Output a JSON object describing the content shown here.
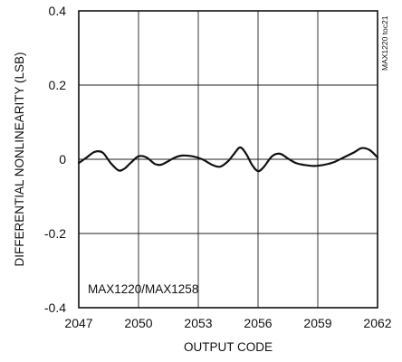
{
  "chart_data": {
    "type": "line",
    "title": "",
    "xlabel": "OUTPUT CODE",
    "ylabel": "DIFFERENTIAL NONLINEARITY (LSB)",
    "xlim": [
      2047,
      2062
    ],
    "ylim": [
      -0.4,
      0.4
    ],
    "x_ticks": [
      2047,
      2050,
      2053,
      2056,
      2059,
      2062
    ],
    "x_tick_labels": [
      "2047",
      "2050",
      "2053",
      "2056",
      "2059",
      "2062"
    ],
    "y_ticks": [
      -0.4,
      -0.2,
      0,
      0.2,
      0.4
    ],
    "y_tick_labels": [
      "-0.4",
      "-0.2",
      "0",
      "0.2",
      "0.4"
    ],
    "grid": true,
    "legend": "none",
    "annotations": [
      "MAX1220/MAX1258"
    ],
    "side_tag": "MAX1220 toc21",
    "line_color": "#111111",
    "series": [
      {
        "x": [
          2047.0,
          2047.4,
          2047.8,
          2048.2,
          2048.6,
          2049.0,
          2049.3,
          2049.6,
          2050.0,
          2050.4,
          2050.8,
          2051.1,
          2051.4,
          2051.8,
          2052.2,
          2052.7,
          2053.2,
          2053.7,
          2054.1,
          2054.5,
          2054.8,
          2055.1,
          2055.4,
          2055.7,
          2056.0,
          2056.3,
          2056.7,
          2057.1,
          2057.5,
          2057.9,
          2058.3,
          2058.8,
          2059.3,
          2059.8,
          2060.3,
          2060.8,
          2061.2,
          2061.6,
          2062.0
        ],
        "y": [
          -0.01,
          0.005,
          0.02,
          0.018,
          -0.01,
          -0.03,
          -0.025,
          -0.01,
          0.008,
          0.005,
          -0.012,
          -0.015,
          -0.008,
          0.004,
          0.01,
          0.008,
          0.0,
          -0.015,
          -0.02,
          -0.005,
          0.015,
          0.032,
          0.015,
          -0.015,
          -0.032,
          -0.02,
          0.008,
          0.015,
          0.002,
          -0.01,
          -0.015,
          -0.018,
          -0.015,
          -0.008,
          0.005,
          0.018,
          0.03,
          0.025,
          0.005
        ]
      }
    ]
  }
}
